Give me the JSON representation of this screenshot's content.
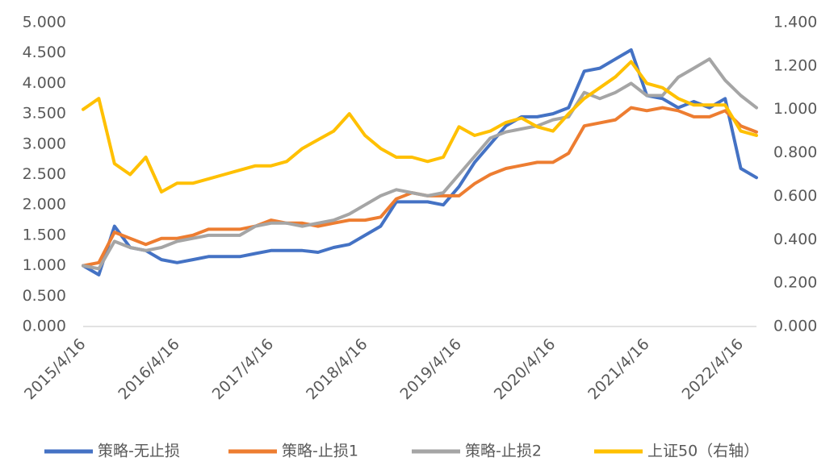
{
  "chart_data": {
    "type": "line",
    "categories": [
      "2015/4/16",
      null,
      null,
      null,
      null,
      null,
      "2016/4/16",
      null,
      null,
      null,
      null,
      null,
      "2017/4/16",
      null,
      null,
      null,
      null,
      null,
      "2018/4/16",
      null,
      null,
      null,
      null,
      null,
      "2019/4/16",
      null,
      null,
      null,
      null,
      null,
      "2020/4/16",
      null,
      null,
      null,
      null,
      null,
      "2021/4/16",
      null,
      null,
      null,
      null,
      null,
      "2022/4/16",
      null
    ],
    "series": [
      {
        "name": "策略-无止损",
        "color": "#4472c4",
        "axis": "y",
        "values": [
          1.0,
          0.85,
          1.65,
          1.3,
          1.25,
          1.1,
          1.05,
          1.1,
          1.15,
          1.15,
          1.15,
          1.2,
          1.25,
          1.25,
          1.25,
          1.22,
          1.3,
          1.35,
          1.5,
          1.65,
          2.05,
          2.05,
          2.05,
          2.0,
          2.3,
          2.7,
          3.0,
          3.3,
          3.45,
          3.45,
          3.5,
          3.6,
          4.2,
          4.25,
          4.4,
          4.55,
          3.8,
          3.75,
          3.6,
          3.7,
          3.6,
          3.75,
          2.6,
          2.45
        ]
      },
      {
        "name": "策略-止损1",
        "color": "#ed7d31",
        "axis": "y",
        "values": [
          1.0,
          1.05,
          1.55,
          1.45,
          1.35,
          1.45,
          1.45,
          1.5,
          1.6,
          1.6,
          1.6,
          1.65,
          1.75,
          1.7,
          1.7,
          1.65,
          1.7,
          1.75,
          1.75,
          1.8,
          2.1,
          2.2,
          2.15,
          2.15,
          2.15,
          2.35,
          2.5,
          2.6,
          2.65,
          2.7,
          2.7,
          2.85,
          3.3,
          3.35,
          3.4,
          3.6,
          3.55,
          3.6,
          3.55,
          3.45,
          3.45,
          3.55,
          3.3,
          3.2
        ]
      },
      {
        "name": "策略-止损2",
        "color": "#a5a5a5",
        "axis": "y",
        "values": [
          1.0,
          0.95,
          1.4,
          1.3,
          1.25,
          1.3,
          1.4,
          1.45,
          1.5,
          1.5,
          1.5,
          1.65,
          1.7,
          1.7,
          1.65,
          1.7,
          1.75,
          1.85,
          2.0,
          2.15,
          2.25,
          2.2,
          2.15,
          2.2,
          2.5,
          2.8,
          3.1,
          3.2,
          3.25,
          3.3,
          3.4,
          3.45,
          3.85,
          3.75,
          3.85,
          4.0,
          3.8,
          3.8,
          4.1,
          4.25,
          4.4,
          4.05,
          3.8,
          3.6
        ]
      },
      {
        "name": "上证50（右轴）",
        "color": "#ffc000",
        "axis": "y2",
        "values": [
          1.0,
          1.05,
          0.75,
          0.7,
          0.78,
          0.62,
          0.66,
          0.66,
          0.68,
          0.7,
          0.72,
          0.74,
          0.74,
          0.76,
          0.82,
          0.86,
          0.9,
          0.98,
          0.88,
          0.82,
          0.78,
          0.78,
          0.76,
          0.78,
          0.92,
          0.88,
          0.9,
          0.94,
          0.96,
          0.92,
          0.9,
          0.98,
          1.05,
          1.1,
          1.15,
          1.22,
          1.12,
          1.1,
          1.05,
          1.02,
          1.02,
          1.02,
          0.9,
          0.88
        ]
      }
    ],
    "ylim": [
      0,
      5
    ],
    "yticks": [
      {
        "value": 0,
        "label": "0.000"
      },
      {
        "value": 0.5,
        "label": "0.500"
      },
      {
        "value": 1,
        "label": "1.000"
      },
      {
        "value": 1.5,
        "label": "1.500"
      },
      {
        "value": 2,
        "label": "2.000"
      },
      {
        "value": 2.5,
        "label": "2.500"
      },
      {
        "value": 3,
        "label": "3.000"
      },
      {
        "value": 3.5,
        "label": "3.500"
      },
      {
        "value": 4,
        "label": "4.000"
      },
      {
        "value": 4.5,
        "label": "4.500"
      },
      {
        "value": 5,
        "label": "5.000"
      }
    ],
    "y2lim": [
      0,
      1.4
    ],
    "y2ticks": [
      {
        "value": 0,
        "label": "0.000"
      },
      {
        "value": 0.2,
        "label": "0.200"
      },
      {
        "value": 0.4,
        "label": "0.400"
      },
      {
        "value": 0.6,
        "label": "0.600"
      },
      {
        "value": 0.8,
        "label": "0.800"
      },
      {
        "value": 1,
        "label": "1.000"
      },
      {
        "value": 1.2,
        "label": "1.200"
      },
      {
        "value": 1.4,
        "label": "1.400"
      }
    ],
    "grid": false,
    "legend": "bottom"
  }
}
